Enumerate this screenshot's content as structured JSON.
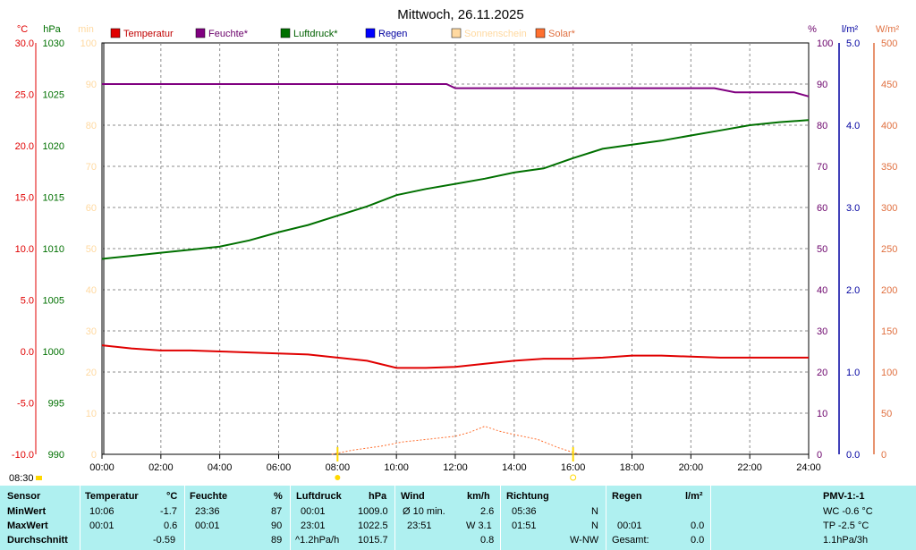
{
  "chart_data": {
    "type": "line",
    "title": "Mittwoch, 26.11.2025",
    "x_ticks": [
      "00:00",
      "02:00",
      "04:00",
      "06:00",
      "08:00",
      "10:00",
      "12:00",
      "14:00",
      "16:00",
      "18:00",
      "20:00",
      "22:00",
      "24:00"
    ],
    "x_range_hours": [
      0,
      24
    ],
    "grid": true,
    "axes": [
      {
        "unit": "°C",
        "side": "left",
        "color": "#e00000",
        "range": [
          -10,
          30
        ],
        "ticks": [
          "30.0",
          "25.0",
          "20.0",
          "15.0",
          "10.0",
          "5.0",
          "0.0",
          "-5.0",
          "-10.0"
        ]
      },
      {
        "unit": "hPa",
        "side": "left",
        "color": "#007000",
        "range": [
          990,
          1030
        ],
        "ticks": [
          "1030",
          "1025",
          "1020",
          "1015",
          "1010",
          "1005",
          "1000",
          "995",
          "990"
        ]
      },
      {
        "unit": "min",
        "side": "left",
        "color": "#ffd9a0",
        "range": [
          0,
          100
        ],
        "ticks": [
          "100",
          "90",
          "80",
          "70",
          "60",
          "50",
          "40",
          "30",
          "20",
          "10",
          "0"
        ]
      },
      {
        "unit": "%",
        "side": "right",
        "color": "#6a006a",
        "range": [
          0,
          100
        ],
        "ticks": [
          "100",
          "90",
          "80",
          "70",
          "60",
          "50",
          "40",
          "30",
          "20",
          "10",
          "0"
        ]
      },
      {
        "unit": "l/m²",
        "side": "right",
        "color": "#0000a0",
        "range": [
          0,
          5
        ],
        "ticks": [
          "5.0",
          "4.0",
          "3.0",
          "2.0",
          "1.0",
          "0.0"
        ]
      },
      {
        "unit": "W/m²",
        "side": "right",
        "color": "#e07040",
        "range": [
          0,
          500
        ],
        "ticks": [
          "500",
          "450",
          "400",
          "350",
          "300",
          "250",
          "200",
          "150",
          "100",
          "50",
          "0"
        ]
      }
    ],
    "legend": [
      {
        "name": "Temperatur",
        "color": "#e00000"
      },
      {
        "name": "Feuchte*",
        "color": "#800080"
      },
      {
        "name": "Luftdruck*",
        "color": "#007000"
      },
      {
        "name": "Regen",
        "color": "#0000ff"
      },
      {
        "name": "Sonnenschein",
        "color": "#ffd9a0"
      },
      {
        "name": "Solar*",
        "color": "#ff7030"
      }
    ],
    "series": [
      {
        "name": "Temperatur",
        "axis": "°C",
        "color": "#e00000",
        "x": [
          0,
          1,
          2,
          3,
          4,
          5,
          6,
          7,
          8,
          9,
          10,
          11,
          12,
          13,
          14,
          15,
          16,
          17,
          18,
          19,
          20,
          21,
          22,
          23,
          24
        ],
        "y": [
          0.6,
          0.3,
          0.1,
          0.1,
          0.0,
          -0.1,
          -0.2,
          -0.3,
          -0.6,
          -0.9,
          -1.6,
          -1.6,
          -1.5,
          -1.2,
          -0.9,
          -0.7,
          -0.7,
          -0.6,
          -0.4,
          -0.4,
          -0.5,
          -0.6,
          -0.6,
          -0.6,
          -0.6
        ]
      },
      {
        "name": "Feuchte*",
        "axis": "%",
        "color": "#800080",
        "x": [
          0,
          2,
          4,
          6,
          8,
          10,
          11.7,
          12,
          13,
          14,
          16,
          18,
          20,
          20.8,
          21.5,
          22,
          23.5,
          24
        ],
        "y": [
          90,
          90,
          90,
          90,
          90,
          90,
          90,
          89,
          89,
          89,
          89,
          89,
          89,
          89,
          88,
          88,
          88,
          87
        ]
      },
      {
        "name": "Luftdruck*",
        "axis": "hPa",
        "color": "#007000",
        "x": [
          0,
          1,
          2,
          3,
          4,
          5,
          6,
          7,
          8,
          9,
          10,
          11,
          12,
          13,
          14,
          15,
          16,
          17,
          18,
          19,
          20,
          21,
          22,
          23,
          24
        ],
        "y": [
          1009.0,
          1009.3,
          1009.6,
          1009.9,
          1010.2,
          1010.8,
          1011.6,
          1012.3,
          1013.2,
          1014.1,
          1015.2,
          1015.8,
          1016.3,
          1016.8,
          1017.4,
          1017.8,
          1018.8,
          1019.7,
          1020.1,
          1020.5,
          1021.0,
          1021.5,
          1022.0,
          1022.3,
          1022.5
        ]
      },
      {
        "name": "Solar*",
        "axis": "W/m²",
        "color": "#ff7030",
        "x": [
          7.8,
          8.5,
          9.5,
          10.2,
          11,
          12,
          12.5,
          13,
          13.5,
          14,
          14.8,
          15.5,
          16.2
        ],
        "y": [
          0,
          5,
          10,
          15,
          18,
          22,
          27,
          34,
          28,
          24,
          18,
          8,
          0
        ]
      }
    ],
    "markers": {
      "sunrise": "08:00",
      "sunset": "16:00",
      "bottom_left_time": "08:30"
    }
  },
  "stats": {
    "headers": {
      "sensor": "Sensor",
      "temp": "Temperatur",
      "temp_unit": "°C",
      "hum": "Feuchte",
      "hum_unit": "%",
      "press": "Luftdruck",
      "press_unit": "hPa",
      "wind": "Wind",
      "wind_unit": "km/h",
      "dir": "Richtung",
      "rain": "Regen",
      "rain_unit": "l/m²",
      "pmv": "PMV-1:-1"
    },
    "row1": {
      "label": "MinWert",
      "temp_time": "10:06",
      "temp_val": "-1.7",
      "hum_time": "23:36",
      "hum_val": "87",
      "press_time": "00:01",
      "press_val": "1009.0",
      "wind_text": "Ø 10 min.",
      "wind_val": "2.6",
      "dir_time": "05:36",
      "dir_val": "N",
      "pmv_val": "WC -0.6 °C"
    },
    "row2": {
      "label": "MaxWert",
      "temp_time": "00:01",
      "temp_val": "0.6",
      "hum_time": "00:01",
      "hum_val": "90",
      "press_time": "23:01",
      "press_val": "1022.5",
      "wind_time": "23:51",
      "wind_val": "W 3.1",
      "dir_time": "01:51",
      "dir_val": "N",
      "rain_time": "00:01",
      "rain_val": "0.0",
      "pmv_val": "TP -2.5 °C"
    },
    "row3": {
      "label": "Durchschnitt",
      "temp_val": "-0.59",
      "hum_val": "89",
      "press_trend": "^1.2hPa/h",
      "press_val": "1015.7",
      "wind_val": "0.8",
      "dir_val": "W-NW",
      "rain_label": "Gesamt:",
      "rain_val": "0.0",
      "pmv_val": "1.1hPa/3h"
    }
  }
}
